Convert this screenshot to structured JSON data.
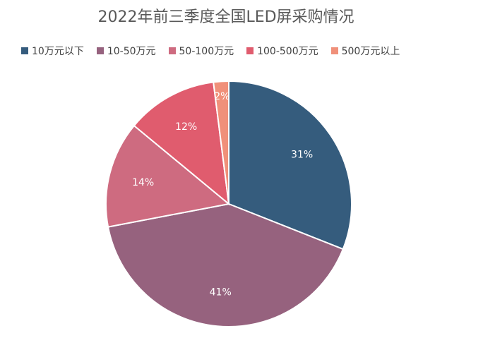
{
  "chart_data": {
    "type": "pie",
    "title": "2022年前三季度全国LED屏采购情况",
    "legend_position": "top",
    "slices": [
      {
        "label": "10万元以下",
        "value": 31,
        "display": "31%",
        "color": "#355C7D"
      },
      {
        "label": "10-50万元",
        "value": 41,
        "display": "41%",
        "color": "#96627E"
      },
      {
        "label": "50-100万元",
        "value": 14,
        "display": "14%",
        "color": "#CE6B80"
      },
      {
        "label": "100-500万元",
        "value": 12,
        "display": "12%",
        "color": "#E05C6E"
      },
      {
        "label": "500万元以上",
        "value": 2,
        "display": "2%",
        "color": "#F0907A"
      }
    ]
  }
}
